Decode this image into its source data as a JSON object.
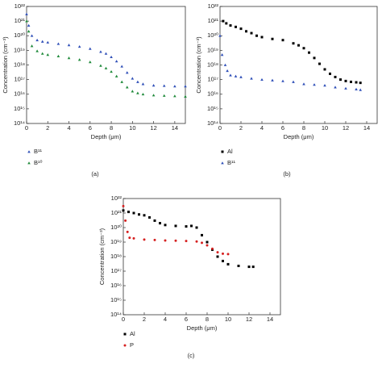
{
  "chart_data": [
    {
      "type": "scatter",
      "panel": "(a)",
      "x_label": "Depth (μm)",
      "y_label": "Concentration (cm⁻³)",
      "log_y": true,
      "xlim": [
        0,
        15
      ],
      "xticks": [
        0,
        2,
        4,
        6,
        8,
        10,
        12,
        14
      ],
      "ylim": [
        100000000000000.0,
        1e+22
      ],
      "yticks": [
        {
          "value": 100000000000000.0,
          "label": "10¹⁴"
        },
        {
          "value": 1000000000000000.0,
          "label": "10¹⁵"
        },
        {
          "value": 1e+16,
          "label": "10¹⁶"
        },
        {
          "value": 1e+17,
          "label": "10¹⁷"
        },
        {
          "value": 1e+18,
          "label": "10¹⁸"
        },
        {
          "value": 1e+19,
          "label": "10¹⁹"
        },
        {
          "value": 1e+20,
          "label": "10²⁰"
        },
        {
          "value": 1e+21,
          "label": "10²¹"
        },
        {
          "value": 1e+22,
          "label": "10²²"
        }
      ],
      "series": [
        {
          "name": "B¹¹",
          "color": "#2f4fb8",
          "marker": "triangle",
          "x": [
            0,
            0.2,
            0.5,
            1,
            1.5,
            2,
            3,
            4,
            5,
            6,
            7,
            7.5,
            8,
            8.5,
            9,
            9.5,
            10,
            10.5,
            11,
            12,
            13,
            14,
            15
          ],
          "values": [
            3e+21,
            5e+20,
            1e+20,
            5e+19,
            4e+19,
            3.5e+19,
            2.8e+19,
            2.3e+19,
            1.8e+19,
            1.3e+19,
            8e+18,
            6e+18,
            3.5e+18,
            1.8e+18,
            8e+17,
            3e+17,
            1.2e+17,
            7e+16,
            5e+16,
            4e+16,
            3.8e+16,
            3.5e+16,
            3.5e+16
          ]
        },
        {
          "name": "B¹⁰",
          "color": "#1f8a3a",
          "marker": "triangle",
          "x": [
            0,
            0.2,
            0.5,
            1,
            1.5,
            2,
            3,
            4,
            5,
            6,
            7,
            7.5,
            8,
            8.5,
            9,
            9.5,
            10,
            10.5,
            11,
            12,
            13,
            14,
            15
          ],
          "values": [
            1e+21,
            2e+20,
            2e+19,
            9e+18,
            6e+18,
            5e+18,
            4e+18,
            3e+18,
            2.3e+18,
            1.6e+18,
            9e+17,
            6e+17,
            3.5e+17,
            1.7e+17,
            7e+16,
            3e+16,
            1.6e+16,
            1.2e+16,
            1e+16,
            8500000000000000.0,
            8000000000000000.0,
            7500000000000000.0,
            7000000000000000.0
          ]
        }
      ]
    },
    {
      "type": "scatter",
      "panel": "(b)",
      "x_label": "Depth (μm)",
      "y_label": "Concentration (cm⁻³)",
      "log_y": true,
      "xlim": [
        0,
        15
      ],
      "xticks": [
        0,
        2,
        4,
        6,
        8,
        10,
        12,
        14
      ],
      "ylim": [
        100000000000000.0,
        1e+22
      ],
      "yticks": [
        {
          "value": 100000000000000.0,
          "label": "10¹⁴"
        },
        {
          "value": 1000000000000000.0,
          "label": "10¹⁵"
        },
        {
          "value": 1e+16,
          "label": "10¹⁶"
        },
        {
          "value": 1e+17,
          "label": "10¹⁷"
        },
        {
          "value": 1e+18,
          "label": "10¹⁸"
        },
        {
          "value": 1e+19,
          "label": "10¹⁹"
        },
        {
          "value": 1e+20,
          "label": "10²⁰"
        },
        {
          "value": 1e+21,
          "label": "10²¹"
        },
        {
          "value": 1e+22,
          "label": "10²²"
        }
      ],
      "series": [
        {
          "name": "Al",
          "color": "#000000",
          "marker": "square",
          "x": [
            0.3,
            0.6,
            1,
            1.5,
            2,
            2.5,
            3,
            3.5,
            4,
            5,
            6,
            7,
            7.5,
            8,
            8.5,
            9,
            9.5,
            10,
            10.5,
            11,
            11.5,
            12,
            12.5,
            13,
            13.4
          ],
          "values": [
            1e+21,
            7e+20,
            5e+20,
            4e+20,
            3e+20,
            2e+20,
            1.5e+20,
            1e+20,
            8e+19,
            6e+19,
            5e+19,
            3e+19,
            2.2e+19,
            1.4e+19,
            7e+18,
            3e+18,
            1.2e+18,
            5e+17,
            2.5e+17,
            1.5e+17,
            1e+17,
            8e+16,
            7e+16,
            6.5e+16,
            6e+16
          ]
        },
        {
          "name": "B¹¹",
          "color": "#2f4fb8",
          "marker": "triangle",
          "x": [
            0,
            0.2,
            0.5,
            0.7,
            1,
            1.5,
            2,
            3,
            4,
            5,
            6,
            7,
            8,
            9,
            10,
            11,
            12,
            13,
            13.4
          ],
          "values": [
            1e+20,
            5e+18,
            1e+18,
            4e+17,
            2e+17,
            1.7e+17,
            1.5e+17,
            1.2e+17,
            1e+17,
            9e+16,
            8e+16,
            7e+16,
            5e+16,
            4.5e+16,
            4e+16,
            3e+16,
            2.5e+16,
            2.2e+16,
            2e+16
          ]
        }
      ]
    },
    {
      "type": "scatter",
      "panel": "(c)",
      "x_label": "Depth (μm)",
      "y_label": "Concentration (cm⁻³)",
      "log_y": true,
      "xlim": [
        0,
        15
      ],
      "xticks": [
        0,
        2,
        4,
        6,
        8,
        10,
        12,
        14
      ],
      "ylim": [
        100000000000000.0,
        1e+22
      ],
      "yticks": [
        {
          "value": 100000000000000.0,
          "label": "10¹⁴"
        },
        {
          "value": 1000000000000000.0,
          "label": "10¹⁵"
        },
        {
          "value": 1e+16,
          "label": "10¹⁶"
        },
        {
          "value": 1e+17,
          "label": "10¹⁷"
        },
        {
          "value": 1e+18,
          "label": "10¹⁸"
        },
        {
          "value": 1e+19,
          "label": "10¹⁹"
        },
        {
          "value": 1e+20,
          "label": "10²⁰"
        },
        {
          "value": 1e+21,
          "label": "10²¹"
        },
        {
          "value": 1e+22,
          "label": "10²²"
        }
      ],
      "series": [
        {
          "name": "Al",
          "color": "#000000",
          "marker": "square",
          "x": [
            0,
            0.5,
            1,
            1.5,
            2,
            2.5,
            3,
            3.5,
            4,
            5,
            6,
            6.5,
            7,
            7.5,
            8,
            8.5,
            9,
            9.5,
            10,
            11,
            12,
            12.4
          ],
          "values": [
            1.5e+21,
            1.2e+21,
            1e+21,
            8e+20,
            7e+20,
            5e+20,
            3e+20,
            2e+20,
            1.5e+20,
            1.3e+20,
            1.2e+20,
            1.3e+20,
            1e+20,
            3e+19,
            1e+19,
            3e+18,
            1e+18,
            5e+17,
            3e+17,
            2.3e+17,
            2e+17,
            2e+17
          ]
        },
        {
          "name": "P",
          "color": "#d62020",
          "marker": "circle",
          "x": [
            0,
            0.2,
            0.4,
            0.6,
            1,
            2,
            3,
            4,
            5,
            6,
            7,
            7.5,
            8,
            8.5,
            9,
            9.5,
            10
          ],
          "values": [
            3e+21,
            3e+20,
            5e+19,
            2e+19,
            1.8e+19,
            1.5e+19,
            1.4e+19,
            1.3e+19,
            1.25e+19,
            1.2e+19,
            1.1e+19,
            9e+18,
            6e+18,
            3.5e+18,
            2e+18,
            1.6e+18,
            1.5e+18
          ]
        }
      ]
    }
  ]
}
